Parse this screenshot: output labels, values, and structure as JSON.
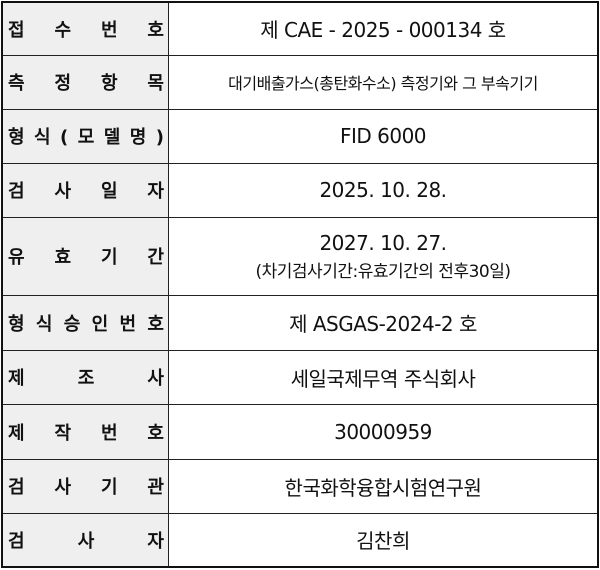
{
  "rows": [
    {
      "label": "접 수 번 호",
      "value": "제 CAE - 2025 - 000134 호"
    },
    {
      "label": "측 정 항 목",
      "value": "대기배출가스(총탄화수소) 측정기와 그 부속기기"
    },
    {
      "label": "형 식 ( 모 델 명 )",
      "value": "FID 6000"
    },
    {
      "label": "검 사 일 자",
      "value": "2025. 10. 28."
    },
    {
      "label": "유 효 기 간",
      "value": "2027. 10. 27.",
      "note": "(차기검사기간:유효기간의 전후30일)"
    },
    {
      "label": "형 식 승 인 번 호",
      "value": "제 ASGAS-2024-2 호"
    },
    {
      "label": "제 조 사",
      "value": "세일국제무역 주식회사"
    },
    {
      "label": "제 작 번 호",
      "value": "30000959"
    },
    {
      "label": "검 사 기 관",
      "value": "한국화학융합시험연구원"
    },
    {
      "label": "검 사 자",
      "value": "김찬희"
    }
  ]
}
